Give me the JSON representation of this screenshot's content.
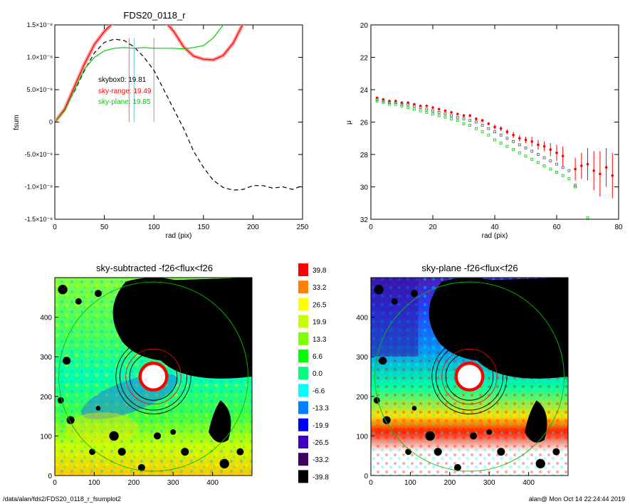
{
  "footer": {
    "left": "/data/alan/fds2/FDS20_0118_r_fsumplot2",
    "right": "alan@  Mon Oct 14 22:24:44 2019"
  },
  "colors": {
    "black_series": "#000000",
    "red_series": "#ff0000",
    "green_series": "#00cc00",
    "red_error_band": "#ff9999",
    "marker_lines": [
      "#ff6666",
      "#66cccc",
      "#999999"
    ]
  },
  "chart_data": [
    {
      "id": "fsum",
      "type": "line",
      "title": "FDS20_0118_r",
      "xlabel": "rad (pix)",
      "ylabel": "fsum",
      "xlim": [
        0,
        250
      ],
      "ylim": [
        -1.5e-08,
        1.5e-08
      ],
      "x_ticks": [
        0,
        50,
        100,
        150,
        200,
        250
      ],
      "x_tick_labels": [
        "0",
        "50",
        "100",
        "150",
        "200",
        "250"
      ],
      "y_ticks": [
        -1.5e-08,
        -1e-08,
        -5e-09,
        0,
        5e-09,
        1e-08,
        1.5e-08
      ],
      "y_tick_labels": [
        "-1.5×10⁻⁸",
        "-1.0×10⁻⁸",
        "-5.0×10⁻⁹",
        "0",
        "5.0×10⁻⁹",
        "1.0×10⁻⁸",
        "1.5×10⁻⁸"
      ],
      "vertical_markers": [
        75,
        80,
        100
      ],
      "legend": [
        "skybox0: 19.81",
        "sky-range: 19.49",
        "sky-plane: 19.85"
      ],
      "legend_position": "upper-left",
      "series": [
        {
          "style": "dashed",
          "x": [
            0,
            10,
            20,
            30,
            40,
            50,
            60,
            70,
            80,
            90,
            100,
            110,
            120,
            130,
            140,
            150,
            160,
            170,
            180,
            190,
            200,
            210,
            220,
            230,
            240,
            250
          ],
          "y": [
            0,
            1.8e-09,
            4.8e-09,
            8e-09,
            1.07e-08,
            1.23e-08,
            1.28e-08,
            1.26e-08,
            1.16e-08,
            1e-08,
            8e-09,
            5e-09,
            2e-09,
            -1e-09,
            -4.5e-09,
            -7e-09,
            -9e-09,
            -1.01e-08,
            -1.05e-08,
            -1.04e-08,
            -9.8e-09,
            -9.8e-09,
            -1.02e-08,
            -1e-08,
            -1.04e-08,
            -9.8e-09
          ]
        },
        {
          "style": "solid",
          "x": [
            0,
            10,
            20,
            30,
            40,
            50,
            60,
            70,
            80,
            90,
            100,
            110,
            120,
            130,
            140,
            150,
            160,
            170,
            180,
            190
          ],
          "y": [
            0,
            2e-09,
            5.5e-09,
            9e-09,
            1.2e-08,
            1.4e-08,
            1.55e-08,
            1.65e-08,
            1.7e-08,
            1.7e-08,
            1.65e-08,
            1.58e-08,
            1.4e-08,
            1.16e-08,
            1.02e-08,
            9.7e-09,
            9.6e-09,
            1.03e-08,
            1.22e-08,
            1.52e-08
          ]
        },
        {
          "style": "solid",
          "x": [
            0,
            10,
            20,
            30,
            40,
            50,
            60,
            70,
            80,
            90,
            100,
            110,
            120,
            130,
            140,
            150,
            160,
            170
          ],
          "y": [
            0,
            1.8e-09,
            5e-09,
            8.2e-09,
            1e-08,
            1.1e-08,
            1.14e-08,
            1.15e-08,
            1.14e-08,
            1.15e-08,
            1.14e-08,
            1.14e-08,
            1.14e-08,
            1.13e-08,
            1.15e-08,
            1.18e-08,
            1.3e-08,
            1.5e-08
          ]
        }
      ]
    },
    {
      "id": "mu",
      "type": "scatter",
      "title": "",
      "xlabel": "rad (pix)",
      "ylabel": "μ",
      "xlim": [
        0,
        80
      ],
      "ylim": [
        32,
        20
      ],
      "x_ticks": [
        0,
        20,
        40,
        60,
        80
      ],
      "y_ticks": [
        20,
        22,
        24,
        26,
        28,
        30,
        32
      ],
      "series": [
        {
          "marker": "circle",
          "x": [
            2,
            4,
            6,
            8,
            10,
            12,
            14,
            16,
            18,
            20,
            22,
            24,
            26,
            28,
            30,
            32,
            34,
            36,
            38,
            40,
            42,
            44,
            46,
            48,
            50,
            52,
            54,
            56,
            58,
            60,
            62,
            66,
            68,
            70,
            72,
            74,
            76,
            78
          ],
          "y": [
            24.5,
            24.6,
            24.7,
            24.7,
            24.8,
            24.8,
            24.9,
            25.0,
            25.0,
            25.1,
            25.2,
            25.3,
            25.4,
            25.5,
            25.6,
            25.6,
            25.8,
            25.9,
            26.1,
            26.3,
            26.4,
            26.6,
            26.8,
            27.0,
            27.1,
            27.2,
            27.4,
            27.5,
            27.7,
            27.9,
            28.1,
            28.9,
            28.7,
            28.6,
            29.0,
            29.2,
            28.8,
            29.3
          ],
          "yerr": [
            0.05,
            0.05,
            0.05,
            0.05,
            0.05,
            0.05,
            0.05,
            0.05,
            0.05,
            0.05,
            0.05,
            0.05,
            0.05,
            0.05,
            0.1,
            0.1,
            0.1,
            0.1,
            0.1,
            0.15,
            0.15,
            0.15,
            0.2,
            0.2,
            0.2,
            0.3,
            0.3,
            0.3,
            0.4,
            0.5,
            0.6,
            0.7,
            0.8,
            1.0,
            1.2,
            1.4,
            1.2,
            1.4
          ]
        },
        {
          "marker": "square",
          "x": [
            2,
            4,
            6,
            8,
            10,
            12,
            14,
            16,
            18,
            20,
            22,
            24,
            26,
            28,
            30,
            32,
            34,
            36,
            38,
            40,
            42,
            44,
            46,
            48,
            50,
            52,
            54,
            56,
            58,
            60,
            62,
            64,
            66
          ],
          "y": [
            24.6,
            24.7,
            24.8,
            24.8,
            24.9,
            24.9,
            25.0,
            25.1,
            25.2,
            25.3,
            25.4,
            25.5,
            25.6,
            25.7,
            25.8,
            25.9,
            26.0,
            26.2,
            26.4,
            26.6,
            26.8,
            27.0,
            27.2,
            27.4,
            27.6,
            27.8,
            28.0,
            28.2,
            28.4,
            28.6,
            28.8,
            29.0,
            29.9
          ]
        },
        {
          "marker": "square",
          "x": [
            2,
            4,
            6,
            8,
            10,
            12,
            14,
            16,
            18,
            20,
            22,
            24,
            26,
            28,
            30,
            32,
            34,
            36,
            38,
            40,
            42,
            44,
            46,
            48,
            50,
            52,
            54,
            56,
            58,
            60,
            62,
            64,
            66,
            70
          ],
          "y": [
            24.7,
            24.8,
            24.9,
            24.9,
            25.0,
            25.1,
            25.2,
            25.3,
            25.4,
            25.5,
            25.6,
            25.7,
            25.8,
            25.9,
            26.1,
            26.2,
            26.4,
            26.6,
            26.8,
            27.1,
            27.3,
            27.5,
            27.7,
            27.9,
            28.1,
            28.3,
            28.5,
            28.7,
            28.9,
            29.1,
            29.3,
            29.5,
            30.0,
            31.9
          ]
        }
      ]
    },
    {
      "id": "map-subtracted",
      "type": "heatmap",
      "title": "sky-subtracted -f26<flux<f26",
      "xlim": [
        0,
        500
      ],
      "ylim": [
        0,
        500
      ],
      "x_ticks": [
        0,
        100,
        200,
        300,
        400
      ],
      "y_ticks": [
        0,
        100,
        200,
        300,
        400
      ],
      "center": [
        250,
        250
      ]
    },
    {
      "id": "map-plane",
      "type": "heatmap",
      "title": "sky-plane -f26<flux<f26",
      "xlim": [
        0,
        500
      ],
      "ylim": [
        0,
        500
      ],
      "x_ticks": [
        0,
        100,
        200,
        300,
        400
      ],
      "y_ticks": [
        0,
        100,
        200,
        300,
        400
      ],
      "center": [
        250,
        250
      ]
    },
    {
      "id": "colorbar",
      "type": "table",
      "levels": [
        "39.8",
        "33.2",
        "26.5",
        "19.9",
        "13.3",
        "6.6",
        "0.0",
        "-6.6",
        "-13.3",
        "-19.9",
        "-26.5",
        "-33.2",
        "-39.8"
      ],
      "colors": [
        "#ff0000",
        "#ff8000",
        "#ffff00",
        "#c8ff00",
        "#80ff00",
        "#00ff00",
        "#00ff80",
        "#00ffff",
        "#0080ff",
        "#0000ff",
        "#4000c0",
        "#400060",
        "#000000"
      ]
    }
  ]
}
